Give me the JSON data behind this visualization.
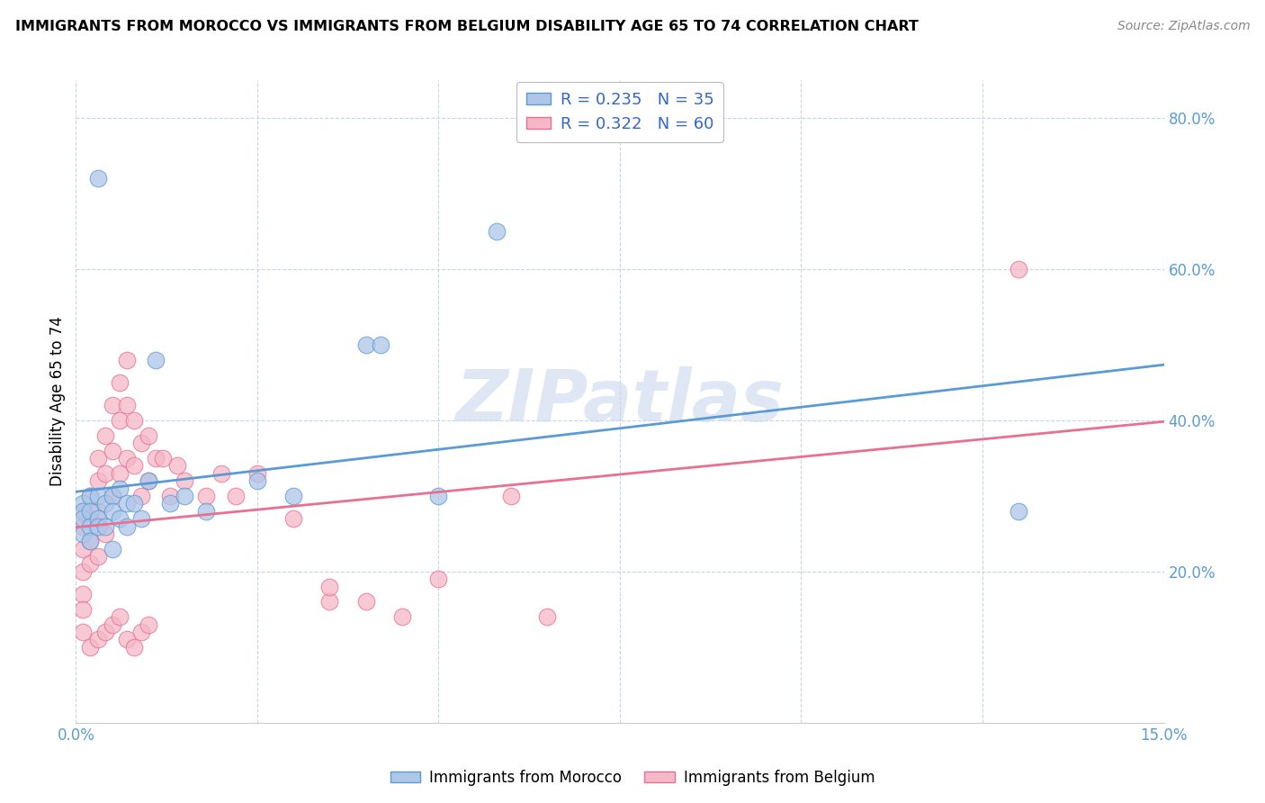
{
  "title": "IMMIGRANTS FROM MOROCCO VS IMMIGRANTS FROM BELGIUM DISABILITY AGE 65 TO 74 CORRELATION CHART",
  "source": "Source: ZipAtlas.com",
  "ylabel": "Disability Age 65 to 74",
  "xlim": [
    0.0,
    0.15
  ],
  "ylim": [
    0.0,
    0.85
  ],
  "xticks": [
    0.0,
    0.025,
    0.05,
    0.075,
    0.1,
    0.125,
    0.15
  ],
  "xticklabels": [
    "0.0%",
    "",
    "",
    "",
    "",
    "",
    "15.0%"
  ],
  "yticks": [
    0.2,
    0.4,
    0.6,
    0.8
  ],
  "yticklabels": [
    "20.0%",
    "40.0%",
    "60.0%",
    "80.0%"
  ],
  "morocco_color": "#aec6e8",
  "morocco_edge_color": "#5b9bd5",
  "belgium_color": "#f4b8c8",
  "belgium_edge_color": "#e87090",
  "trendline_morocco_color": "#5b9bd5",
  "trendline_belgium_color": "#e87090",
  "legend_label_morocco": "Immigrants from Morocco",
  "legend_label_belgium": "Immigrants from Belgium",
  "watermark": "ZIPatlas",
  "scatter_size": 180,
  "scatter_alpha": 0.75,
  "morocco_x": [
    0.001,
    0.001,
    0.001,
    0.001,
    0.002,
    0.002,
    0.002,
    0.002,
    0.003,
    0.003,
    0.003,
    0.004,
    0.004,
    0.005,
    0.005,
    0.005,
    0.006,
    0.006,
    0.007,
    0.007,
    0.008,
    0.009,
    0.01,
    0.011,
    0.013,
    0.015,
    0.018,
    0.025,
    0.03,
    0.04,
    0.042,
    0.05,
    0.058,
    0.13,
    0.003
  ],
  "morocco_y": [
    0.29,
    0.28,
    0.27,
    0.25,
    0.3,
    0.28,
    0.26,
    0.24,
    0.3,
    0.27,
    0.26,
    0.29,
    0.26,
    0.3,
    0.28,
    0.23,
    0.31,
    0.27,
    0.29,
    0.26,
    0.29,
    0.27,
    0.32,
    0.48,
    0.29,
    0.3,
    0.28,
    0.32,
    0.3,
    0.5,
    0.5,
    0.3,
    0.65,
    0.28,
    0.72
  ],
  "belgium_x": [
    0.001,
    0.001,
    0.001,
    0.001,
    0.001,
    0.001,
    0.002,
    0.002,
    0.002,
    0.002,
    0.003,
    0.003,
    0.003,
    0.003,
    0.004,
    0.004,
    0.004,
    0.005,
    0.005,
    0.005,
    0.006,
    0.006,
    0.006,
    0.007,
    0.007,
    0.007,
    0.008,
    0.008,
    0.009,
    0.009,
    0.01,
    0.01,
    0.011,
    0.012,
    0.013,
    0.014,
    0.015,
    0.018,
    0.02,
    0.022,
    0.025,
    0.03,
    0.035,
    0.04,
    0.045,
    0.05,
    0.06,
    0.065,
    0.13,
    0.035,
    0.001,
    0.002,
    0.003,
    0.004,
    0.005,
    0.006,
    0.007,
    0.008,
    0.009,
    0.01
  ],
  "belgium_y": [
    0.28,
    0.26,
    0.23,
    0.2,
    0.17,
    0.15,
    0.3,
    0.27,
    0.24,
    0.21,
    0.35,
    0.32,
    0.28,
    0.22,
    0.38,
    0.33,
    0.25,
    0.42,
    0.36,
    0.3,
    0.45,
    0.4,
    0.33,
    0.48,
    0.42,
    0.35,
    0.4,
    0.34,
    0.37,
    0.3,
    0.38,
    0.32,
    0.35,
    0.35,
    0.3,
    0.34,
    0.32,
    0.3,
    0.33,
    0.3,
    0.33,
    0.27,
    0.16,
    0.16,
    0.14,
    0.19,
    0.3,
    0.14,
    0.6,
    0.18,
    0.12,
    0.1,
    0.11,
    0.12,
    0.13,
    0.14,
    0.11,
    0.1,
    0.12,
    0.13
  ]
}
